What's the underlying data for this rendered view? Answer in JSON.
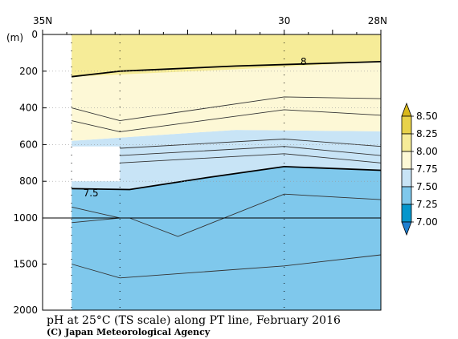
{
  "chart_data": {
    "type": "heatmap",
    "title": "pH at 25°C (TS scale) along PT line, February 2016",
    "credit": "(C) Japan Meteorological Agency",
    "x_axis": {
      "range": [
        35,
        28
      ],
      "tick_labels": [
        {
          "value": 35,
          "label": "35N"
        },
        {
          "value": 30,
          "label": "30"
        },
        {
          "value": 28,
          "label": "28N"
        }
      ]
    },
    "y_axis": {
      "unit_label": "(m)",
      "range": [
        0,
        2000
      ],
      "tick_labels": [
        "0",
        "200",
        "400",
        "600",
        "800",
        "1000",
        "1500",
        "2000"
      ]
    },
    "colorbar": {
      "levels": [
        "8.50",
        "8.25",
        "8.00",
        "7.75",
        "7.50",
        "7.25",
        "7.00"
      ],
      "colors": [
        "#ffffff",
        "#e8d24a",
        "#f6ec98",
        "#fdf8d6",
        "#c8e4f6",
        "#7fc8ec",
        "#0596cc",
        "#1f7fd0"
      ]
    },
    "contour_labels": [
      {
        "value": "8",
        "lat": 29.6,
        "depth": 148
      },
      {
        "value": "7.5",
        "lat": 34.0,
        "depth": 865
      }
    ],
    "regions": [
      {
        "range": "8.00-8.25",
        "color": "#f6ec98"
      },
      {
        "range": "7.75-8.00",
        "color": "#fdf8d6"
      },
      {
        "range": "7.50-7.75",
        "color": "#c8e4f6"
      },
      {
        "range": "7.25-7.50",
        "color": "#7fc8ec"
      }
    ]
  }
}
